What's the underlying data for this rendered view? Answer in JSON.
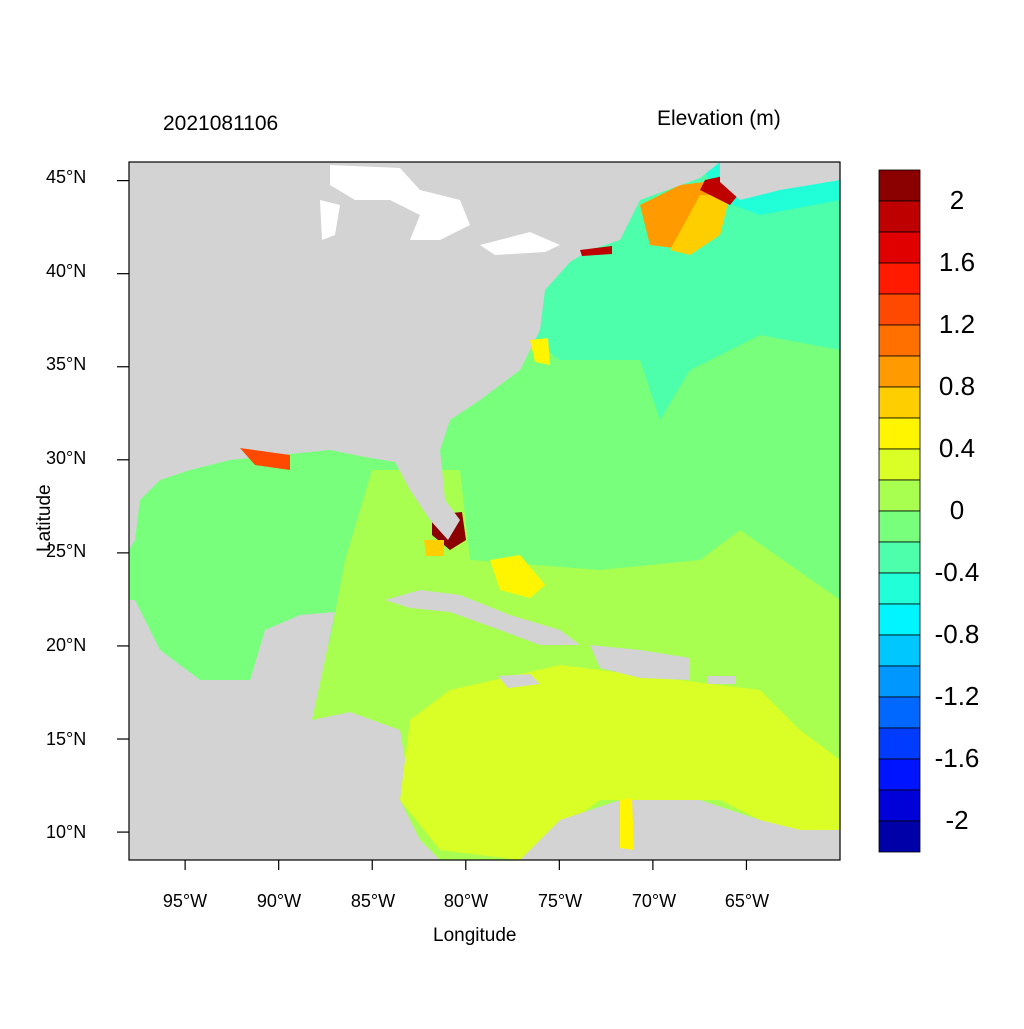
{
  "plot": {
    "timestamp": "2021081106",
    "variable_title": "Elevation (m)",
    "xlabel": "Longitude",
    "ylabel": "Latitude",
    "x_ticks": [
      "95°W",
      "90°W",
      "85°W",
      "80°W",
      "75°W",
      "70°W",
      "65°W"
    ],
    "y_ticks": [
      "45°N",
      "40°N",
      "35°N",
      "30°N",
      "25°N",
      "20°N",
      "15°N",
      "10°N"
    ],
    "lon_range": [
      -98,
      -60
    ],
    "lat_range": [
      8.5,
      46
    ]
  },
  "colorbar": {
    "labels": [
      "2",
      "1.6",
      "1.2",
      "0.8",
      "0.4",
      "0",
      "-0.4",
      "-0.8",
      "-1.2",
      "-1.6",
      "-2"
    ],
    "colors": [
      "#8b0000",
      "#be0000",
      "#e00000",
      "#ff1a00",
      "#ff4800",
      "#ff7000",
      "#ff9b00",
      "#ffce00",
      "#fff500",
      "#d9ff26",
      "#a8ff50",
      "#78ff7c",
      "#4dffaa",
      "#20ffd8",
      "#00f5ff",
      "#00c8ff",
      "#0097ff",
      "#0068ff",
      "#003cff",
      "#0014ff",
      "#0000d8",
      "#0000a8"
    ]
  },
  "colors": {
    "land": "#d3d3d3",
    "lakes": "#ffffff"
  }
}
